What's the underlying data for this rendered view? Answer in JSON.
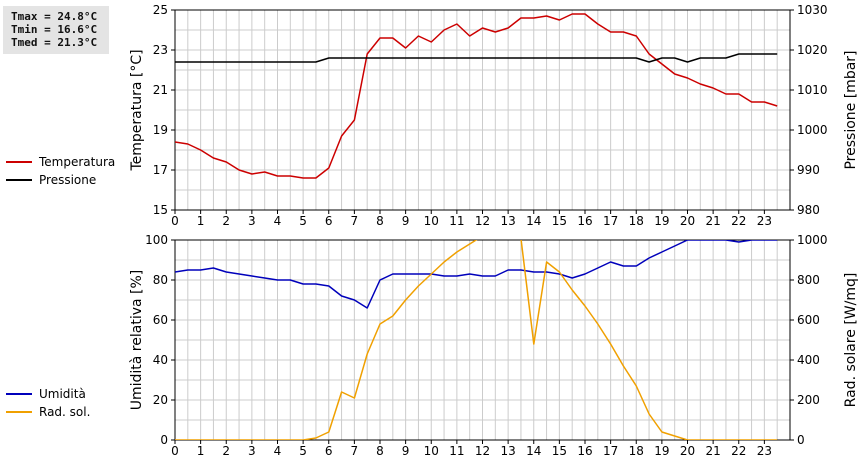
{
  "stats": {
    "tmax": "Tmax = 24.8°C",
    "tmin": "Tmin = 16.6°C",
    "tmed": "Tmed = 21.3°C"
  },
  "colors": {
    "temperature": "#cc0000",
    "pressure": "#000000",
    "humidity": "#0000bb",
    "radiation": "#f0a000",
    "grid": "#cccccc"
  },
  "legend_top": [
    {
      "label": "Temperatura",
      "color": "#cc0000"
    },
    {
      "label": "Pressione",
      "color": "#000000"
    }
  ],
  "legend_bottom": [
    {
      "label": "Umidità",
      "color": "#0000bb"
    },
    {
      "label": "Rad. sol.",
      "color": "#f0a000"
    }
  ],
  "chart_data": [
    {
      "type": "line",
      "xlabel": "",
      "x_ticks": [
        "0",
        "1",
        "2",
        "3",
        "4",
        "5",
        "6",
        "7",
        "8",
        "9",
        "10",
        "11",
        "12",
        "13",
        "14",
        "15",
        "16",
        "17",
        "18",
        "19",
        "20",
        "21",
        "22",
        "23"
      ],
      "xlim": [
        0,
        24
      ],
      "ylabel": "Temperatura [°C]",
      "ylim": [
        15,
        25
      ],
      "y_ticks": [
        15,
        17,
        19,
        21,
        23,
        25
      ],
      "y2label": "Pressione [mbar]",
      "y2lim": [
        980,
        1030
      ],
      "y2_ticks": [
        980,
        990,
        1000,
        1010,
        1020,
        1030
      ],
      "grid": true,
      "series": [
        {
          "name": "Temperatura",
          "axis": "left",
          "color": "#cc0000",
          "x": [
            0,
            0.5,
            1,
            1.5,
            2,
            2.5,
            3,
            3.5,
            4,
            4.5,
            5,
            5.5,
            6,
            6.5,
            7,
            7.5,
            8,
            8.5,
            9,
            9.5,
            10,
            10.5,
            11,
            11.5,
            12,
            12.5,
            13,
            13.5,
            14,
            14.5,
            15,
            15.5,
            16,
            16.5,
            17,
            17.5,
            18,
            18.5,
            19,
            19.5,
            20,
            20.5,
            21,
            21.5,
            22,
            22.5,
            23,
            23.5
          ],
          "values": [
            18.4,
            18.3,
            18.0,
            17.6,
            17.4,
            17.0,
            16.8,
            16.9,
            16.7,
            16.7,
            16.6,
            16.6,
            17.1,
            18.7,
            19.5,
            22.8,
            23.6,
            23.6,
            23.1,
            23.7,
            23.4,
            24.0,
            24.3,
            23.7,
            24.1,
            23.9,
            24.1,
            24.6,
            24.6,
            24.7,
            24.5,
            24.8,
            24.8,
            24.3,
            23.9,
            23.9,
            23.7,
            22.8,
            22.3,
            21.8,
            21.6,
            21.3,
            21.1,
            20.8,
            20.8,
            20.4,
            20.4,
            20.2
          ]
        },
        {
          "name": "Pressione",
          "axis": "right",
          "color": "#000000",
          "x": [
            0,
            0.5,
            1,
            1.5,
            2,
            2.5,
            3,
            3.5,
            4,
            4.5,
            5,
            5.5,
            6,
            6.5,
            7,
            7.5,
            8,
            8.5,
            9,
            9.5,
            10,
            10.5,
            11,
            11.5,
            12,
            12.5,
            13,
            13.5,
            14,
            14.5,
            15,
            15.5,
            16,
            16.5,
            17,
            17.5,
            18,
            18.5,
            19,
            19.5,
            20,
            20.5,
            21,
            21.5,
            22,
            22.5,
            23,
            23.5
          ],
          "values": [
            1017,
            1017,
            1017,
            1017,
            1017,
            1017,
            1017,
            1017,
            1017,
            1017,
            1017,
            1017,
            1018,
            1018,
            1018,
            1018,
            1018,
            1018,
            1018,
            1018,
            1018,
            1018,
            1018,
            1018,
            1018,
            1018,
            1018,
            1018,
            1018,
            1018,
            1018,
            1018,
            1018,
            1018,
            1018,
            1018,
            1018,
            1017,
            1018,
            1018,
            1017,
            1018,
            1018,
            1018,
            1019,
            1019,
            1019,
            1019
          ]
        }
      ]
    },
    {
      "type": "line",
      "xlabel": "",
      "x_ticks": [
        "0",
        "1",
        "2",
        "3",
        "4",
        "5",
        "6",
        "7",
        "8",
        "9",
        "10",
        "11",
        "12",
        "13",
        "14",
        "15",
        "16",
        "17",
        "18",
        "19",
        "20",
        "21",
        "22",
        "23"
      ],
      "xlim": [
        0,
        24
      ],
      "ylabel": "Umidità relativa [%]",
      "ylim": [
        0,
        100
      ],
      "y_ticks": [
        0,
        20,
        40,
        60,
        80,
        100
      ],
      "y2label": "Rad. solare [W/mq]",
      "y2lim": [
        0,
        1000
      ],
      "y2_ticks": [
        0,
        200,
        400,
        600,
        800,
        1000
      ],
      "grid": true,
      "series": [
        {
          "name": "Umidità",
          "axis": "left",
          "color": "#0000bb",
          "x": [
            0,
            0.5,
            1,
            1.5,
            2,
            2.5,
            3,
            3.5,
            4,
            4.5,
            5,
            5.5,
            6,
            6.5,
            7,
            7.5,
            8,
            8.5,
            9,
            9.5,
            10,
            10.5,
            11,
            11.5,
            12,
            12.5,
            13,
            13.5,
            14,
            14.5,
            15,
            15.5,
            16,
            16.5,
            17,
            17.5,
            18,
            18.5,
            19,
            19.5,
            20,
            20.5,
            21,
            21.5,
            22,
            22.5,
            23,
            23.5
          ],
          "values": [
            84,
            85,
            85,
            86,
            84,
            83,
            82,
            81,
            80,
            80,
            78,
            78,
            77,
            72,
            70,
            66,
            80,
            83,
            83,
            83,
            83,
            82,
            82,
            83,
            82,
            82,
            85,
            85,
            84,
            84,
            83,
            81,
            83,
            86,
            89,
            87,
            87,
            91,
            94,
            97,
            100,
            100,
            100,
            100,
            99,
            100,
            100,
            100
          ]
        },
        {
          "name": "Rad. sol.",
          "axis": "right",
          "color": "#f0a000",
          "x": [
            0,
            0.5,
            1,
            1.5,
            2,
            2.5,
            3,
            3.5,
            4,
            4.5,
            5,
            5.5,
            6,
            6.5,
            7,
            7.5,
            8,
            8.5,
            9,
            9.5,
            10,
            10.5,
            11,
            11.5,
            12,
            12.5,
            13,
            13.5,
            14,
            14.5,
            15,
            15.5,
            16,
            16.5,
            17,
            17.5,
            18,
            18.5,
            19,
            19.5,
            20,
            20.5,
            21,
            21.5,
            22,
            22.5,
            23,
            23.5
          ],
          "values": [
            0,
            0,
            0,
            0,
            0,
            0,
            0,
            0,
            0,
            0,
            0,
            10,
            40,
            240,
            210,
            430,
            580,
            620,
            700,
            770,
            830,
            890,
            940,
            980,
            1020,
            1040,
            1060,
            1010,
            480,
            890,
            840,
            750,
            670,
            580,
            480,
            370,
            270,
            130,
            40,
            20,
            0,
            0,
            0,
            0,
            0,
            0,
            0,
            0
          ]
        }
      ]
    }
  ]
}
